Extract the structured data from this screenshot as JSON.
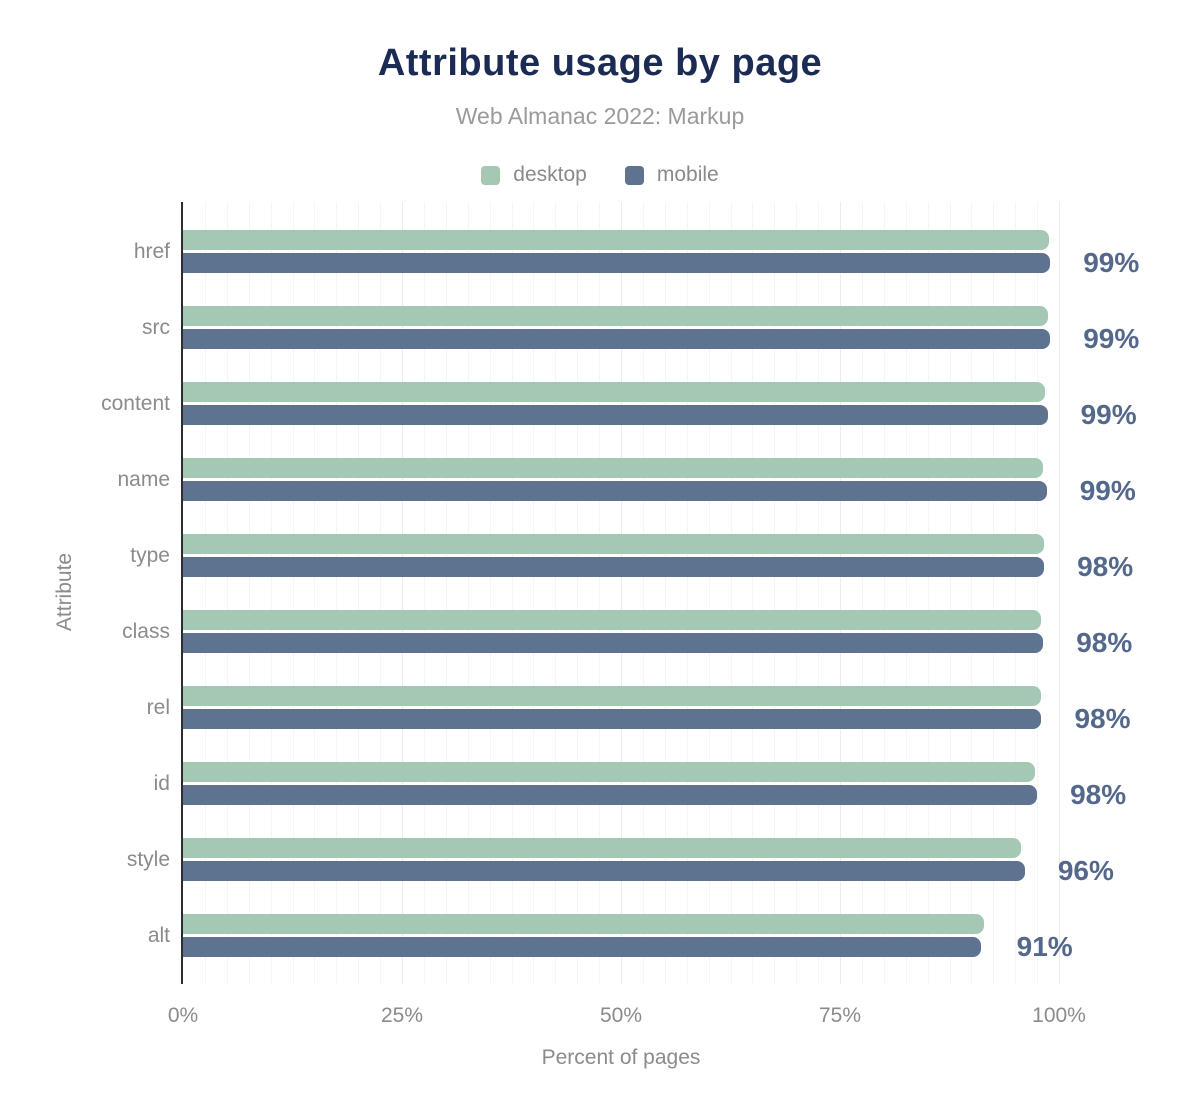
{
  "colors": {
    "title": "#1b2b53",
    "subtitle": "#9a9a9a",
    "axis_text": "#8b8b8b",
    "value_label": "#54688c",
    "axis_line": "#2e2e2e",
    "grid_minor": "#f5f5f5",
    "grid_major": "#ececec",
    "desktop": "#a5c8b4",
    "mobile": "#5d7390"
  },
  "chart_data": {
    "type": "bar",
    "orientation": "horizontal",
    "title": "Attribute usage by page",
    "subtitle": "Web Almanac 2022: Markup",
    "categories": [
      "href",
      "src",
      "content",
      "name",
      "type",
      "class",
      "rel",
      "id",
      "style",
      "alt"
    ],
    "series": [
      {
        "name": "desktop",
        "color": "#a5c8b4",
        "values": [
          98.9,
          98.7,
          98.4,
          98.2,
          98.3,
          98.0,
          98.0,
          97.3,
          95.7,
          91.4
        ]
      },
      {
        "name": "mobile",
        "color": "#5d7390",
        "values": [
          99.0,
          99.0,
          98.7,
          98.6,
          98.3,
          98.2,
          98.0,
          97.5,
          96.1,
          91.1
        ]
      }
    ],
    "value_labels": [
      "99%",
      "99%",
      "99%",
      "99%",
      "98%",
      "98%",
      "98%",
      "98%",
      "96%",
      "91%"
    ],
    "xlabel": "Percent of pages",
    "ylabel": "Attribute",
    "x_axis": {
      "range": [
        0,
        100
      ],
      "tick_values": [
        0,
        25,
        50,
        75,
        100
      ],
      "tick_labels": [
        "0%",
        "25%",
        "50%",
        "75%",
        "100%"
      ],
      "minor_grid_step": 2.5,
      "major_grid_step": 25
    },
    "legend_position": "top",
    "grid": "vertical-only"
  }
}
